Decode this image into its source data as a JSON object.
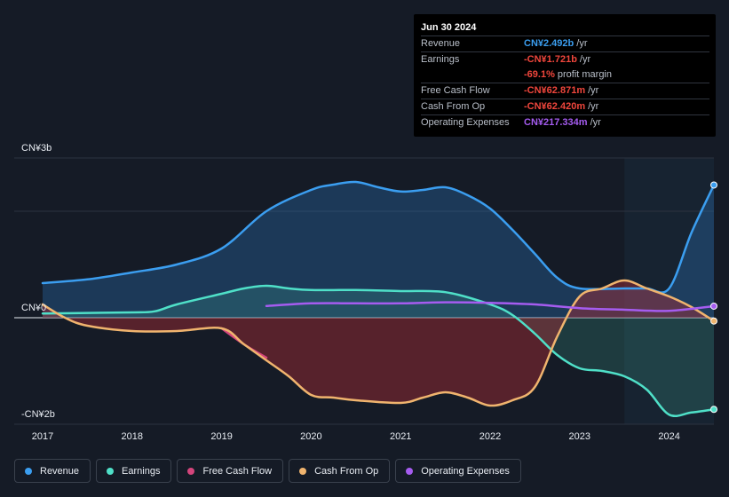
{
  "chart_data": {
    "type": "area",
    "title": "",
    "xlabel": "",
    "ylabel": "",
    "y_unit_labels": {
      "top": "CN¥3b",
      "zero": "CN¥0",
      "bottom": "-CN¥2b"
    },
    "ylim": [
      -2.0,
      3.0
    ],
    "xlim": [
      2017.0,
      2024.5
    ],
    "x_ticks": [
      "2017",
      "2018",
      "2019",
      "2020",
      "2021",
      "2022",
      "2023",
      "2024"
    ],
    "forecast_shade_start": 2023.5,
    "series": [
      {
        "name": "Revenue",
        "color": "#3b9ef0",
        "points": [
          [
            2017.0,
            0.65
          ],
          [
            2017.5,
            0.72
          ],
          [
            2018.0,
            0.85
          ],
          [
            2018.5,
            1.0
          ],
          [
            2019.0,
            1.3
          ],
          [
            2019.5,
            2.0
          ],
          [
            2020.0,
            2.4
          ],
          [
            2020.25,
            2.5
          ],
          [
            2020.5,
            2.55
          ],
          [
            2020.75,
            2.45
          ],
          [
            2021.0,
            2.37
          ],
          [
            2021.25,
            2.4
          ],
          [
            2021.5,
            2.45
          ],
          [
            2021.75,
            2.3
          ],
          [
            2022.0,
            2.05
          ],
          [
            2022.25,
            1.65
          ],
          [
            2022.5,
            1.2
          ],
          [
            2022.75,
            0.75
          ],
          [
            2023.0,
            0.55
          ],
          [
            2023.5,
            0.55
          ],
          [
            2023.75,
            0.55
          ],
          [
            2024.0,
            0.55
          ],
          [
            2024.25,
            1.6
          ],
          [
            2024.5,
            2.492
          ]
        ]
      },
      {
        "name": "Earnings",
        "color": "#4fe0c8",
        "points": [
          [
            2017.0,
            0.08
          ],
          [
            2017.5,
            0.09
          ],
          [
            2018.0,
            0.1
          ],
          [
            2018.25,
            0.12
          ],
          [
            2018.5,
            0.25
          ],
          [
            2019.0,
            0.45
          ],
          [
            2019.25,
            0.55
          ],
          [
            2019.5,
            0.6
          ],
          [
            2019.75,
            0.55
          ],
          [
            2020.0,
            0.52
          ],
          [
            2020.5,
            0.52
          ],
          [
            2021.0,
            0.5
          ],
          [
            2021.5,
            0.48
          ],
          [
            2022.0,
            0.25
          ],
          [
            2022.25,
            0.05
          ],
          [
            2022.5,
            -0.3
          ],
          [
            2022.75,
            -0.7
          ],
          [
            2023.0,
            -0.95
          ],
          [
            2023.25,
            -1.0
          ],
          [
            2023.5,
            -1.1
          ],
          [
            2023.75,
            -1.35
          ],
          [
            2024.0,
            -1.82
          ],
          [
            2024.25,
            -1.78
          ],
          [
            2024.5,
            -1.721
          ]
        ]
      },
      {
        "name": "Free Cash Flow",
        "color": "#d4457c",
        "points": [
          [
            2019.0,
            -0.2
          ],
          [
            2019.25,
            -0.5
          ],
          [
            2019.5,
            -0.75
          ]
        ]
      },
      {
        "name": "Cash From Op",
        "color": "#f0b46e",
        "points": [
          [
            2017.0,
            0.25
          ],
          [
            2017.25,
            0.0
          ],
          [
            2017.5,
            -0.15
          ],
          [
            2018.0,
            -0.25
          ],
          [
            2018.5,
            -0.25
          ],
          [
            2019.0,
            -0.2
          ],
          [
            2019.25,
            -0.5
          ],
          [
            2019.5,
            -0.8
          ],
          [
            2019.75,
            -1.1
          ],
          [
            2020.0,
            -1.45
          ],
          [
            2020.25,
            -1.5
          ],
          [
            2020.5,
            -1.55
          ],
          [
            2021.0,
            -1.6
          ],
          [
            2021.25,
            -1.5
          ],
          [
            2021.5,
            -1.4
          ],
          [
            2021.75,
            -1.5
          ],
          [
            2022.0,
            -1.65
          ],
          [
            2022.25,
            -1.55
          ],
          [
            2022.5,
            -1.3
          ],
          [
            2022.75,
            -0.35
          ],
          [
            2023.0,
            0.4
          ],
          [
            2023.25,
            0.55
          ],
          [
            2023.5,
            0.7
          ],
          [
            2023.75,
            0.55
          ],
          [
            2024.0,
            0.4
          ],
          [
            2024.25,
            0.2
          ],
          [
            2024.5,
            -0.062
          ]
        ]
      },
      {
        "name": "Operating Expenses",
        "color": "#a55cf0",
        "points": [
          [
            2019.5,
            0.22
          ],
          [
            2020.0,
            0.27
          ],
          [
            2020.5,
            0.27
          ],
          [
            2021.0,
            0.27
          ],
          [
            2021.5,
            0.29
          ],
          [
            2022.0,
            0.28
          ],
          [
            2022.5,
            0.25
          ],
          [
            2023.0,
            0.18
          ],
          [
            2023.5,
            0.15
          ],
          [
            2024.0,
            0.13
          ],
          [
            2024.5,
            0.217
          ]
        ]
      }
    ]
  },
  "tooltip": {
    "date": "Jun 30 2024",
    "rows": [
      {
        "label": "Revenue",
        "value": "CN¥2.492b",
        "unit": "/yr",
        "color": "#3b9ef0"
      },
      {
        "label": "Earnings",
        "value": "-CN¥1.721b",
        "unit": "/yr",
        "color": "#f0463c"
      },
      {
        "label": "",
        "value": "-69.1%",
        "unit": "profit margin",
        "color": "#f0463c"
      },
      {
        "label": "Free Cash Flow",
        "value": "-CN¥62.871m",
        "unit": "/yr",
        "color": "#f0463c"
      },
      {
        "label": "Cash From Op",
        "value": "-CN¥62.420m",
        "unit": "/yr",
        "color": "#f0463c"
      },
      {
        "label": "Operating Expenses",
        "value": "CN¥217.334m",
        "unit": "/yr",
        "color": "#a55cf0"
      }
    ]
  },
  "legend": [
    {
      "label": "Revenue",
      "color": "#3b9ef0"
    },
    {
      "label": "Earnings",
      "color": "#4fe0c8"
    },
    {
      "label": "Free Cash Flow",
      "color": "#d4457c"
    },
    {
      "label": "Cash From Op",
      "color": "#f0b46e"
    },
    {
      "label": "Operating Expenses",
      "color": "#a55cf0"
    }
  ]
}
